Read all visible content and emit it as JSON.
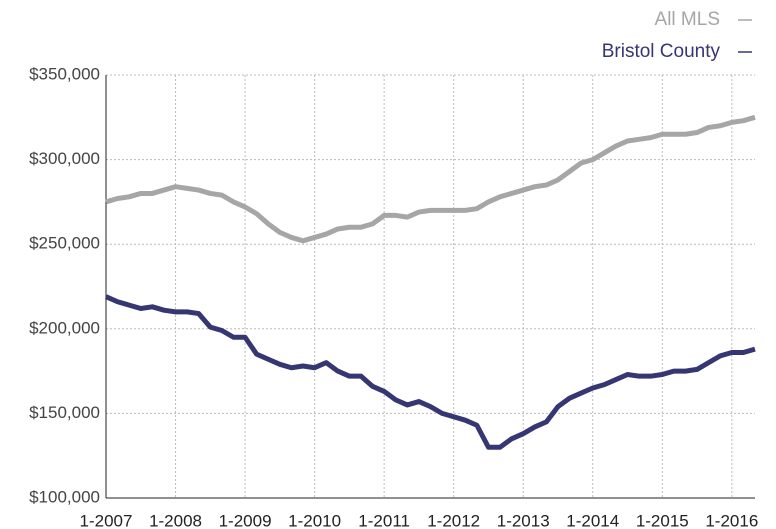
{
  "chart_data": {
    "type": "line",
    "categories": [
      "1-2007",
      null,
      null,
      null,
      null,
      null,
      "1-2008",
      null,
      null,
      null,
      null,
      null,
      "1-2009",
      null,
      null,
      null,
      null,
      null,
      "1-2010",
      null,
      null,
      null,
      null,
      null,
      "1-2011",
      null,
      null,
      null,
      null,
      null,
      "1-2012",
      null,
      null,
      null,
      null,
      null,
      "1-2013",
      null,
      null,
      null,
      null,
      null,
      "1-2014",
      null,
      null,
      null,
      null,
      null,
      "1-2015",
      null,
      null,
      null,
      null,
      null,
      "1-2016",
      null,
      null
    ],
    "series": [
      {
        "name": "All MLS",
        "color": "#a6a6a6",
        "values": [
          275000,
          277000,
          278000,
          280000,
          280000,
          282000,
          284000,
          283000,
          282000,
          280000,
          279000,
          275000,
          272000,
          268000,
          262000,
          257000,
          254000,
          252000,
          254000,
          256000,
          259000,
          260000,
          260000,
          262000,
          267000,
          267000,
          266000,
          269000,
          270000,
          270000,
          270000,
          270000,
          271000,
          275000,
          278000,
          280000,
          282000,
          284000,
          285000,
          288000,
          293000,
          298000,
          300000,
          304000,
          308000,
          311000,
          312000,
          313000,
          315000,
          315000,
          315000,
          316000,
          319000,
          320000,
          322000,
          323000,
          325000
        ]
      },
      {
        "name": "Bristol County",
        "color": "#363673",
        "values": [
          219000,
          216000,
          214000,
          212000,
          213000,
          211000,
          210000,
          210000,
          209000,
          201000,
          199000,
          195000,
          195000,
          185000,
          182000,
          179000,
          177000,
          178000,
          177000,
          180000,
          175000,
          172000,
          172000,
          166000,
          163000,
          158000,
          155000,
          157000,
          154000,
          150000,
          148000,
          146000,
          143000,
          130000,
          130000,
          135000,
          138000,
          142000,
          145000,
          154000,
          159000,
          162000,
          165000,
          167000,
          170000,
          173000,
          172000,
          172000,
          173000,
          175000,
          175000,
          176000,
          180000,
          184000,
          186000,
          186000,
          188000
        ]
      }
    ],
    "ylim": [
      100000,
      350000
    ],
    "yticks": [
      {
        "value": 100000,
        "label": "$100,000"
      },
      {
        "value": 150000,
        "label": "$150,000"
      },
      {
        "value": 200000,
        "label": "$200,000"
      },
      {
        "value": 250000,
        "label": "$250,000"
      },
      {
        "value": 300000,
        "label": "$300,000"
      },
      {
        "value": 350000,
        "label": "$350,000"
      }
    ],
    "grid": true
  }
}
